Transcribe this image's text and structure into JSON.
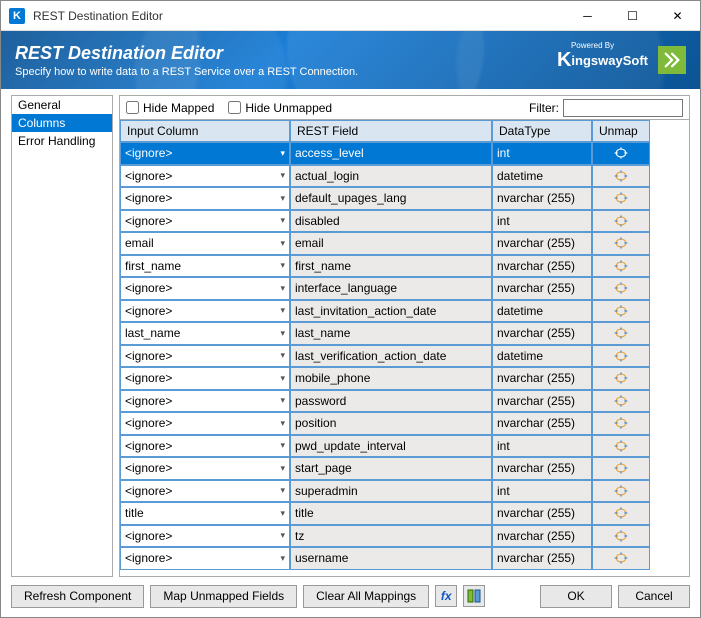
{
  "window": {
    "title": "REST Destination Editor"
  },
  "banner": {
    "heading": "REST Destination Editor",
    "subheading": "Specify how to write data to a REST Service over a REST Connection.",
    "brand_powered": "Powered By",
    "brand_name": "ingswaySoft"
  },
  "sidebar": {
    "items": [
      {
        "label": "General",
        "selected": false
      },
      {
        "label": "Columns",
        "selected": true
      },
      {
        "label": "Error Handling",
        "selected": false
      }
    ]
  },
  "toolbar": {
    "hide_mapped": "Hide Mapped",
    "hide_unmapped": "Hide Unmapped",
    "filter_label": "Filter:"
  },
  "grid": {
    "headers": {
      "input": "Input Column",
      "rest": "REST Field",
      "datatype": "DataType",
      "unmap": "Unmap"
    },
    "rows": [
      {
        "input": "<ignore>",
        "rest": "access_level",
        "datatype": "int",
        "selected": true
      },
      {
        "input": "<ignore>",
        "rest": "actual_login",
        "datatype": "datetime"
      },
      {
        "input": "<ignore>",
        "rest": "default_upages_lang",
        "datatype": "nvarchar (255)"
      },
      {
        "input": "<ignore>",
        "rest": "disabled",
        "datatype": "int"
      },
      {
        "input": "email",
        "rest": "email",
        "datatype": "nvarchar (255)"
      },
      {
        "input": "first_name",
        "rest": "first_name",
        "datatype": "nvarchar (255)"
      },
      {
        "input": "<ignore>",
        "rest": "interface_language",
        "datatype": "nvarchar (255)"
      },
      {
        "input": "<ignore>",
        "rest": "last_invitation_action_date",
        "datatype": "datetime"
      },
      {
        "input": "last_name",
        "rest": "last_name",
        "datatype": "nvarchar (255)"
      },
      {
        "input": "<ignore>",
        "rest": "last_verification_action_date",
        "datatype": "datetime"
      },
      {
        "input": "<ignore>",
        "rest": "mobile_phone",
        "datatype": "nvarchar (255)"
      },
      {
        "input": "<ignore>",
        "rest": "password",
        "datatype": "nvarchar (255)"
      },
      {
        "input": "<ignore>",
        "rest": "position",
        "datatype": "nvarchar (255)"
      },
      {
        "input": "<ignore>",
        "rest": "pwd_update_interval",
        "datatype": "int"
      },
      {
        "input": "<ignore>",
        "rest": "start_page",
        "datatype": "nvarchar (255)"
      },
      {
        "input": "<ignore>",
        "rest": "superadmin",
        "datatype": "int"
      },
      {
        "input": "title",
        "rest": "title",
        "datatype": "nvarchar (255)"
      },
      {
        "input": "<ignore>",
        "rest": "tz",
        "datatype": "nvarchar (255)"
      },
      {
        "input": "<ignore>",
        "rest": "username",
        "datatype": "nvarchar (255)"
      }
    ]
  },
  "footer": {
    "refresh": "Refresh Component",
    "map_unmapped": "Map Unmapped Fields",
    "clear": "Clear All Mappings",
    "ok": "OK",
    "cancel": "Cancel"
  },
  "colors": {
    "selection": "#0078d4",
    "grid_border": "#5b9bd5",
    "header_bg": "#d9e6f2",
    "readonly_bg": "#eceae8"
  }
}
